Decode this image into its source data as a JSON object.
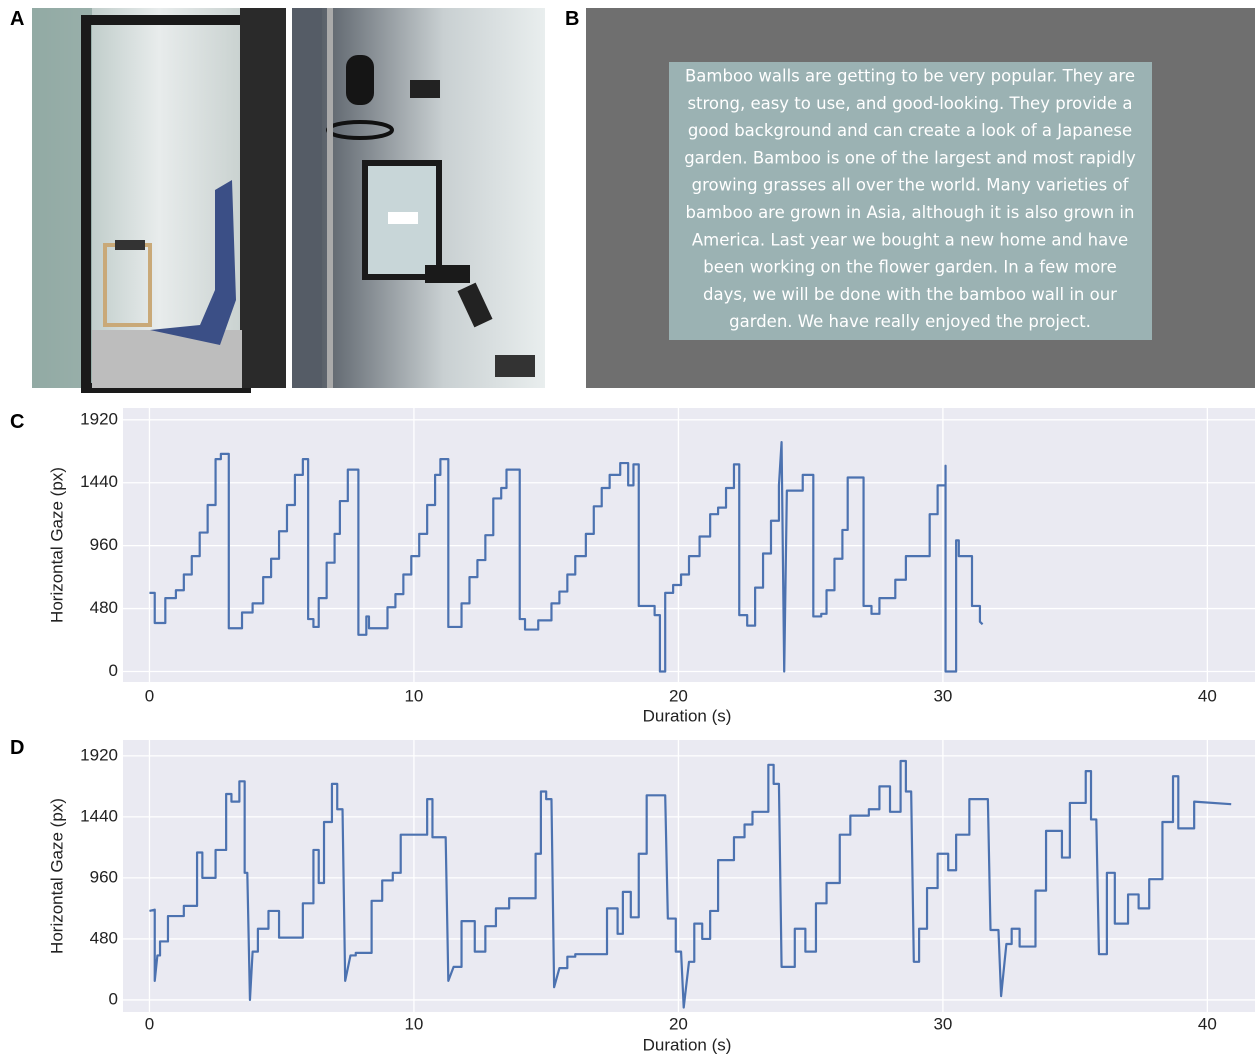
{
  "panel_labels": [
    "A",
    "B",
    "C",
    "D"
  ],
  "stimulus_lines": [
    "Bamboo walls are getting to be very popular.  They are",
    "strong, easy to use, and good-looking.  They provide a",
    "good background and can create a look of a Japanese",
    "garden.  Bamboo is one of the largest and most rapidly",
    "growing grasses all over the world.  Many varieties of",
    "bamboo are grown in Asia, although it is also grown in",
    "America.  Last year we bought a new home and have",
    "been working on the flower garden.  In a few more",
    "days, we will be done with the bamboo wall in our",
    "garden.  We have really enjoyed the project."
  ],
  "chart_data": [
    {
      "type": "line",
      "xlabel": "Duration (s)",
      "ylabel": "Horizontal Gaze (px)",
      "xlim": [
        -1,
        41.8
      ],
      "xticks": [
        0,
        10,
        20,
        30,
        40
      ],
      "ylim": [
        -80,
        2010
      ],
      "yticks": [
        0,
        480,
        960,
        1440,
        1920
      ],
      "grid": true,
      "series": [
        {
          "color": "#4c72b0",
          "x": [
            0,
            0.2,
            0.2,
            0.6,
            0.6,
            1.0,
            1.0,
            1.3,
            1.3,
            1.6,
            1.6,
            1.9,
            1.9,
            2.2,
            2.2,
            2.5,
            2.5,
            2.7,
            2.7,
            3.0,
            3.0,
            3.5,
            3.5,
            3.9,
            3.9,
            4.3,
            4.3,
            4.6,
            4.6,
            4.9,
            4.9,
            5.2,
            5.2,
            5.5,
            5.5,
            5.8,
            5.8,
            6.0,
            6.0,
            6.2,
            6.2,
            6.4,
            6.4,
            6.7,
            6.7,
            7.0,
            7.0,
            7.2,
            7.2,
            7.5,
            7.5,
            7.9,
            7.9,
            8.2,
            8.2,
            8.3,
            8.3,
            9.0,
            9.0,
            9.3,
            9.3,
            9.6,
            9.6,
            9.9,
            9.9,
            10.2,
            10.2,
            10.5,
            10.5,
            10.8,
            10.8,
            11.0,
            11.0,
            11.3,
            11.3,
            11.8,
            11.8,
            12.1,
            12.1,
            12.4,
            12.4,
            12.7,
            12.7,
            13.0,
            13.0,
            13.3,
            13.3,
            13.5,
            13.5,
            14.0,
            14.0,
            14.2,
            14.2,
            14.7,
            14.7,
            15.2,
            15.2,
            15.5,
            15.5,
            15.8,
            15.8,
            16.1,
            16.1,
            16.5,
            16.5,
            16.8,
            16.8,
            17.1,
            17.1,
            17.4,
            17.4,
            17.8,
            17.8,
            18.1,
            18.1,
            18.3,
            18.3,
            18.5,
            18.5,
            19.1,
            19.1,
            19.3,
            19.3,
            19.5,
            19.5,
            19.8,
            19.8,
            20.1,
            20.1,
            20.4,
            20.4,
            20.8,
            20.8,
            21.2,
            21.2,
            21.5,
            21.5,
            21.8,
            21.8,
            22.1,
            22.1,
            22.3,
            22.3,
            22.6,
            22.6,
            22.9,
            22.9,
            23.2,
            23.2,
            23.5,
            23.5,
            23.8,
            23.8,
            23.9,
            24.0,
            24.1,
            24.7,
            24.7,
            25.1,
            25.1,
            25.4,
            25.4,
            25.6,
            25.6,
            25.9,
            25.9,
            26.2,
            26.2,
            26.4,
            26.4,
            27.0,
            27.0,
            27.3,
            27.3,
            27.6,
            27.6,
            28.2,
            28.2,
            28.6,
            28.6,
            29.5,
            29.5,
            29.8,
            29.8,
            30.1,
            30.1,
            30.1,
            30.5,
            30.5,
            30.6,
            30.6,
            31.1,
            31.1,
            31.4,
            31.4,
            31.5
          ],
          "values": [
            600,
            600,
            370,
            370,
            560,
            560,
            620,
            620,
            740,
            740,
            880,
            880,
            1060,
            1060,
            1270,
            1270,
            1620,
            1620,
            1660,
            1660,
            330,
            330,
            450,
            450,
            520,
            520,
            720,
            720,
            860,
            860,
            1070,
            1070,
            1270,
            1270,
            1500,
            1500,
            1620,
            1620,
            400,
            400,
            340,
            340,
            560,
            560,
            830,
            830,
            1050,
            1050,
            1300,
            1300,
            1540,
            1540,
            280,
            280,
            420,
            420,
            330,
            330,
            490,
            490,
            590,
            590,
            740,
            740,
            880,
            880,
            1050,
            1050,
            1270,
            1270,
            1500,
            1500,
            1620,
            1620,
            340,
            340,
            520,
            520,
            720,
            720,
            850,
            850,
            1040,
            1040,
            1320,
            1320,
            1400,
            1400,
            1540,
            1540,
            400,
            400,
            320,
            320,
            390,
            390,
            520,
            520,
            610,
            610,
            740,
            740,
            880,
            880,
            1050,
            1050,
            1260,
            1260,
            1400,
            1400,
            1500,
            1500,
            1590,
            1590,
            1420,
            1420,
            1580,
            1580,
            500,
            500,
            430,
            430,
            0,
            0,
            600,
            600,
            660,
            660,
            740,
            740,
            880,
            880,
            1030,
            1030,
            1200,
            1200,
            1250,
            1250,
            1400,
            1400,
            1580,
            1580,
            430,
            430,
            350,
            350,
            640,
            640,
            900,
            900,
            1150,
            1150,
            1420,
            1750,
            0,
            1380,
            1380,
            1500,
            1500,
            420,
            420,
            440,
            440,
            620,
            620,
            860,
            860,
            1080,
            1080,
            1480,
            1480,
            500,
            500,
            440,
            440,
            560,
            560,
            700,
            700,
            880,
            880,
            1200,
            1200,
            1420,
            1420,
            1570,
            0,
            0,
            1000,
            1000,
            880,
            880,
            500,
            500,
            380,
            360
          ]
        }
      ]
    },
    {
      "type": "line",
      "xlabel": "Duration (s)",
      "ylabel": "Horizontal Gaze (px)",
      "xlim": [
        -1,
        41.8
      ],
      "xticks": [
        0,
        10,
        20,
        30,
        40
      ],
      "ylim": [
        -95,
        2045
      ],
      "yticks": [
        0,
        480,
        960,
        1440,
        1920
      ],
      "grid": true,
      "series": [
        {
          "color": "#4c72b0",
          "x": [
            0,
            0.2,
            0.2,
            0.3,
            0.4,
            0.4,
            0.7,
            0.7,
            1.3,
            1.3,
            1.8,
            1.8,
            2.0,
            2.0,
            2.5,
            2.5,
            2.9,
            2.9,
            3.1,
            3.1,
            3.4,
            3.4,
            3.6,
            3.6,
            3.7,
            3.8,
            3.9,
            4.1,
            4.1,
            4.5,
            4.5,
            4.9,
            4.9,
            5.8,
            5.8,
            6.2,
            6.2,
            6.4,
            6.4,
            6.6,
            6.6,
            6.9,
            6.9,
            7.1,
            7.1,
            7.3,
            7.4,
            7.6,
            7.8,
            7.8,
            8.4,
            8.4,
            8.8,
            8.8,
            9.2,
            9.2,
            9.5,
            9.5,
            10.5,
            10.5,
            10.7,
            10.7,
            11.2,
            11.3,
            11.5,
            11.8,
            11.8,
            12.3,
            12.3,
            12.7,
            12.7,
            13.1,
            13.1,
            13.6,
            13.6,
            14.6,
            14.6,
            14.8,
            14.8,
            15.0,
            15.0,
            15.2,
            15.3,
            15.5,
            15.8,
            15.8,
            16.1,
            16.1,
            17.3,
            17.3,
            17.7,
            17.7,
            17.9,
            17.9,
            18.2,
            18.2,
            18.5,
            18.5,
            18.8,
            18.8,
            19.5,
            19.6,
            19.9,
            19.9,
            20.1,
            20.2,
            20.4,
            20.6,
            20.6,
            20.9,
            20.9,
            21.2,
            21.2,
            21.5,
            21.5,
            22.1,
            22.1,
            22.5,
            22.5,
            22.8,
            22.8,
            23.4,
            23.4,
            23.6,
            23.6,
            23.8,
            23.9,
            24.4,
            24.4,
            24.8,
            24.8,
            25.2,
            25.2,
            25.6,
            25.6,
            26.1,
            26.1,
            26.5,
            26.5,
            27.2,
            27.2,
            27.6,
            27.6,
            28.0,
            28.0,
            28.4,
            28.4,
            28.6,
            28.6,
            28.8,
            28.9,
            29.1,
            29.1,
            29.4,
            29.4,
            29.8,
            29.8,
            30.2,
            30.2,
            30.5,
            30.5,
            31.0,
            31.0,
            31.7,
            31.8,
            32.1,
            32.2,
            32.4,
            32.6,
            32.6,
            32.9,
            32.9,
            33.5,
            33.5,
            33.9,
            33.9,
            34.5,
            34.5,
            34.8,
            34.8,
            35.4,
            35.4,
            35.6,
            35.6,
            35.8,
            35.9,
            36.2,
            36.2,
            36.5,
            36.5,
            37.0,
            37.0,
            37.4,
            37.4,
            37.8,
            37.8,
            38.3,
            38.3,
            38.7,
            38.7,
            38.9,
            38.9,
            39.5,
            39.5,
            40.9
          ],
          "values": [
            700,
            710,
            150,
            350,
            350,
            460,
            460,
            660,
            660,
            740,
            740,
            1160,
            1160,
            960,
            960,
            1180,
            1180,
            1620,
            1620,
            1560,
            1560,
            1720,
            1720,
            1000,
            1000,
            0,
            380,
            380,
            560,
            560,
            700,
            700,
            490,
            490,
            760,
            760,
            1180,
            1180,
            920,
            920,
            1400,
            1400,
            1700,
            1700,
            1500,
            1500,
            150,
            350,
            350,
            370,
            370,
            780,
            780,
            940,
            940,
            1000,
            1000,
            1300,
            1300,
            1580,
            1580,
            1280,
            1280,
            150,
            260,
            260,
            620,
            620,
            380,
            380,
            580,
            580,
            720,
            720,
            800,
            800,
            1150,
            1150,
            1640,
            1640,
            1580,
            1580,
            100,
            250,
            250,
            340,
            340,
            360,
            360,
            720,
            720,
            520,
            520,
            850,
            850,
            650,
            650,
            1150,
            1150,
            1610,
            1610,
            640,
            640,
            380,
            380,
            -60,
            300,
            300,
            600,
            600,
            480,
            480,
            700,
            700,
            1100,
            1100,
            1280,
            1280,
            1380,
            1380,
            1480,
            1480,
            1850,
            1850,
            1700,
            1700,
            260,
            260,
            560,
            560,
            380,
            380,
            760,
            760,
            920,
            920,
            1300,
            1300,
            1450,
            1450,
            1500,
            1500,
            1680,
            1680,
            1480,
            1480,
            1880,
            1880,
            1640,
            1640,
            300,
            300,
            560,
            560,
            880,
            880,
            1150,
            1150,
            1020,
            1020,
            1300,
            1300,
            1580,
            1580,
            550,
            550,
            30,
            440,
            440,
            560,
            560,
            420,
            420,
            860,
            860,
            1330,
            1330,
            1120,
            1120,
            1550,
            1550,
            1800,
            1800,
            1420,
            1420,
            360,
            360,
            1000,
            1000,
            600,
            600,
            830,
            830,
            720,
            720,
            950,
            950,
            1400,
            1400,
            1760,
            1760,
            1350,
            1350,
            1560,
            1540
          ]
        }
      ]
    }
  ]
}
